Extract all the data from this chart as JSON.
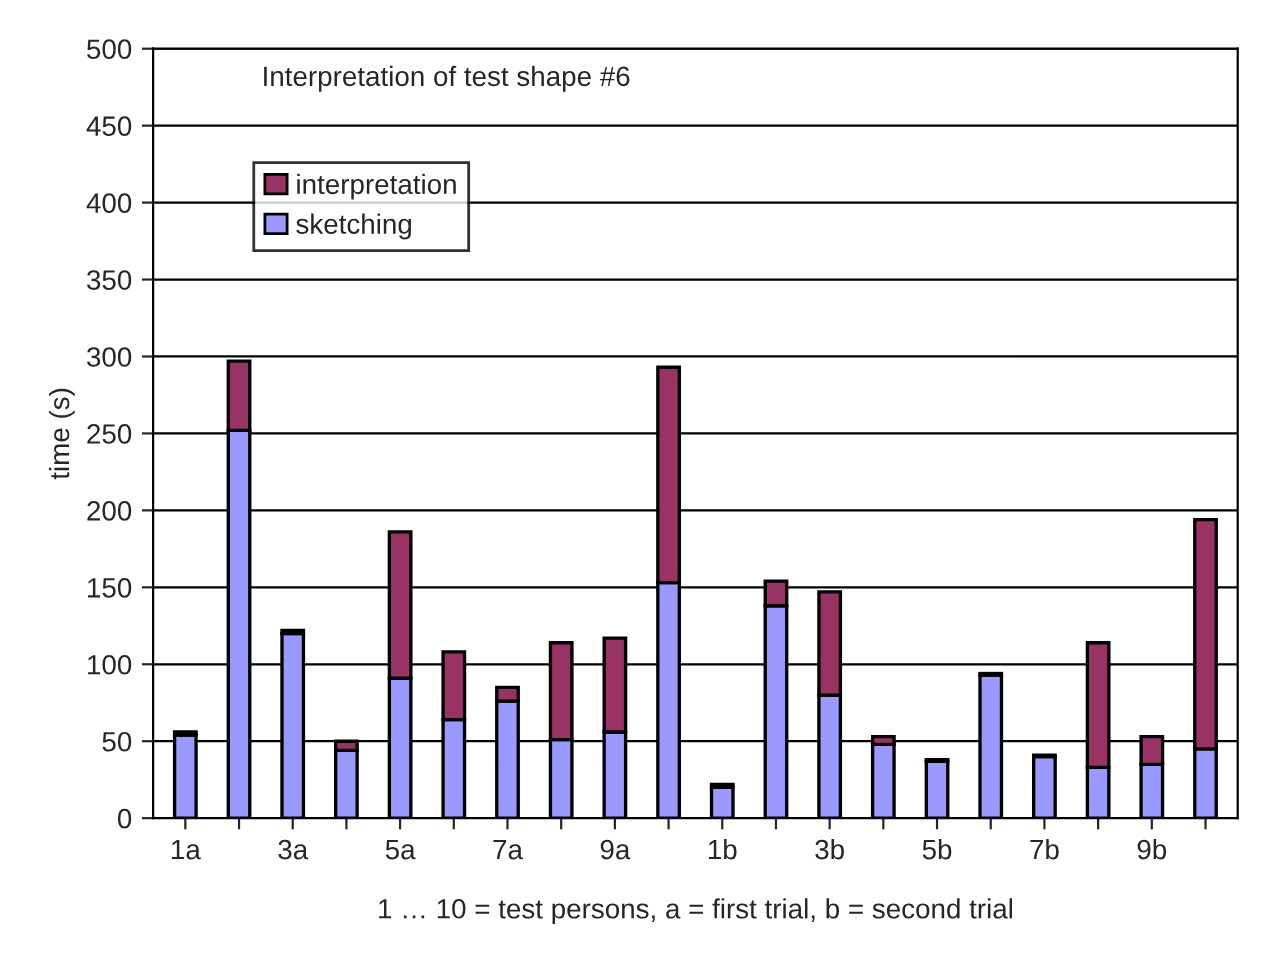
{
  "chart_data": {
    "type": "bar",
    "title": "Interpretation of test shape #6",
    "xlabel": "1 … 10 = test persons, a = first trial, b = second trial",
    "ylabel": "time (s)",
    "categories": [
      "1a",
      null,
      "3a",
      null,
      "5a",
      null,
      "7a",
      null,
      "9a",
      null,
      "1b",
      null,
      "3b",
      null,
      "5b",
      null,
      "7b",
      null,
      "9b",
      null
    ],
    "stacked": true,
    "series": [
      {
        "name": "sketching",
        "color": "#9999ff",
        "values": [
          54,
          252,
          120,
          44,
          91,
          64,
          76,
          51,
          56,
          153,
          20,
          138,
          80,
          48,
          37,
          93,
          40,
          33,
          35,
          45
        ]
      },
      {
        "name": "interpretation",
        "color": "#993366",
        "values": [
          2,
          45,
          2,
          6,
          95,
          44,
          9,
          63,
          61,
          140,
          2,
          16,
          67,
          5,
          1,
          1,
          1,
          81,
          18,
          149
        ]
      }
    ],
    "ylim": [
      0,
      500
    ],
    "yticks": [
      0,
      50,
      100,
      150,
      200,
      250,
      300,
      350,
      400,
      450,
      500
    ],
    "grid": "y",
    "legend": "top left"
  }
}
